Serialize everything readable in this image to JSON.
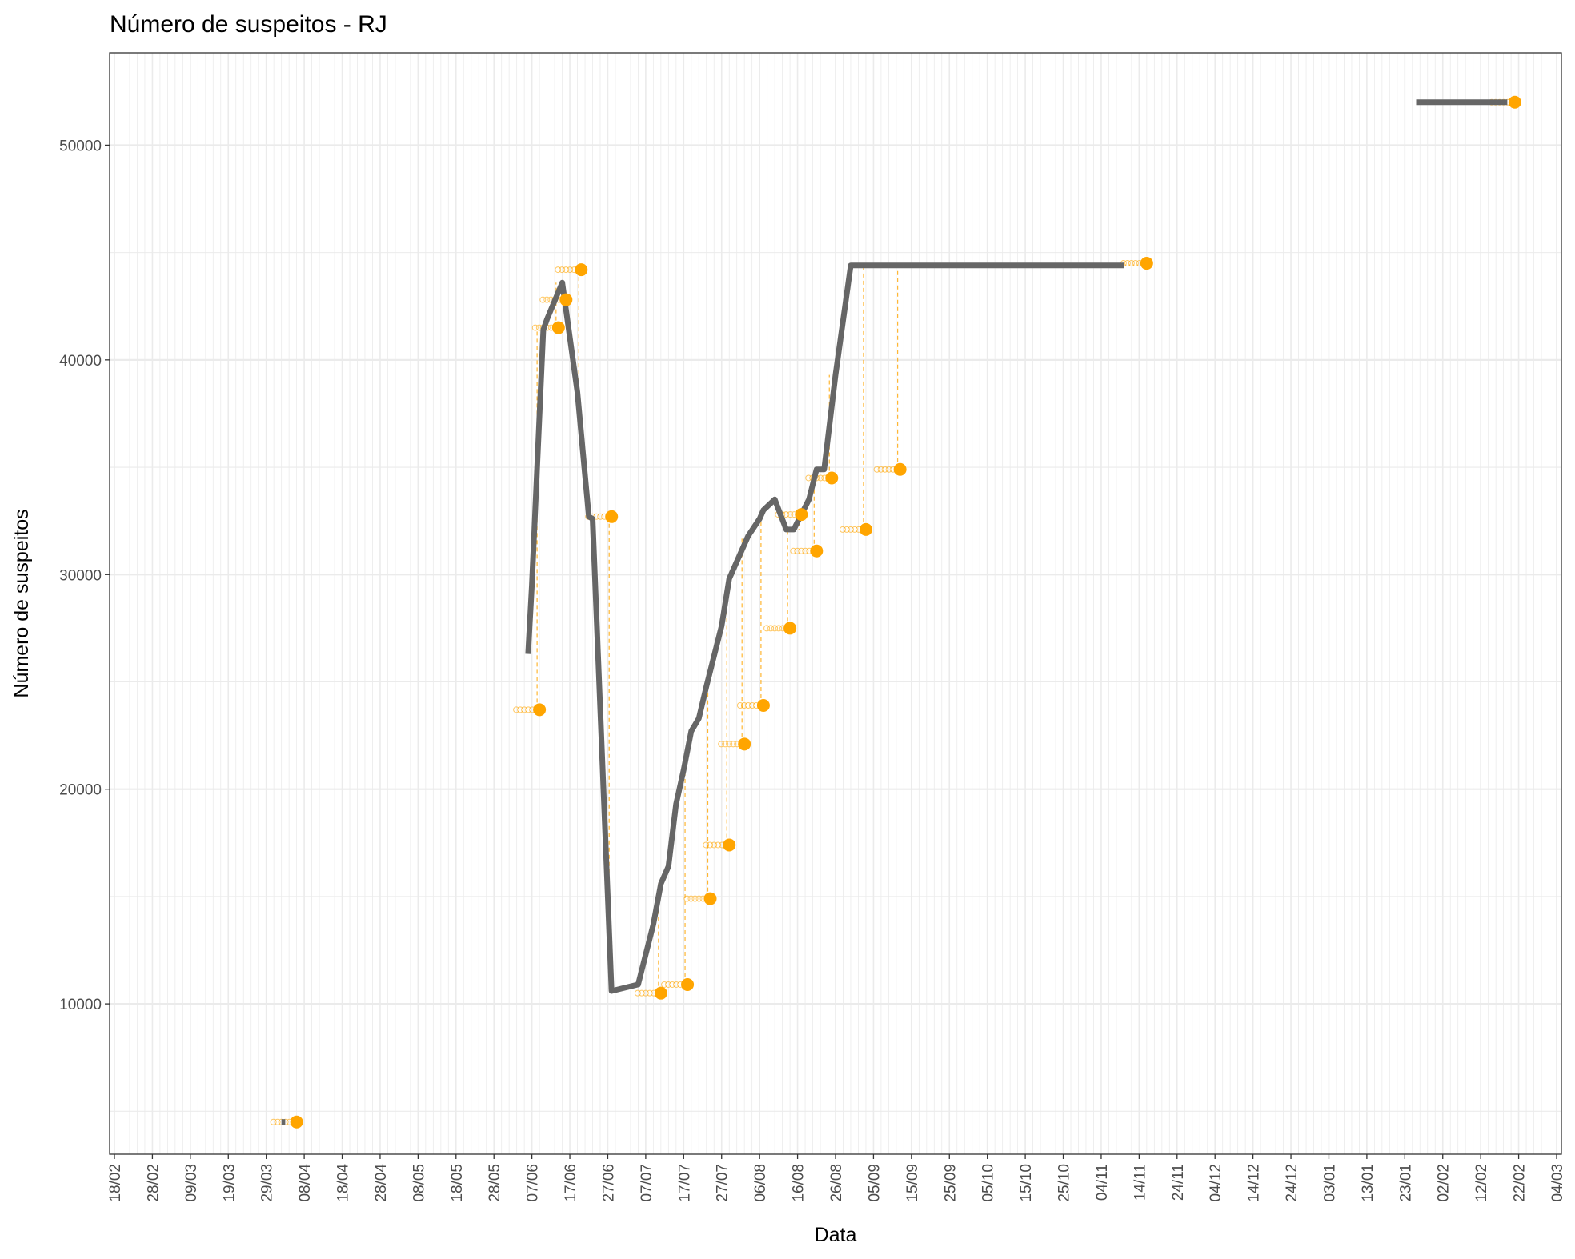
{
  "chart_data": {
    "type": "line",
    "title": "Número de suspeitos - RJ",
    "xlabel": "Data",
    "ylabel": "Número de suspeitos",
    "x_ticks": [
      "18/02",
      "28/02",
      "09/03",
      "19/03",
      "29/03",
      "08/04",
      "18/04",
      "28/04",
      "08/05",
      "18/05",
      "28/05",
      "07/06",
      "17/06",
      "27/06",
      "07/07",
      "17/07",
      "27/07",
      "06/08",
      "16/08",
      "26/08",
      "05/09",
      "15/09",
      "25/09",
      "05/10",
      "15/10",
      "25/10",
      "04/11",
      "14/11",
      "24/11",
      "04/12",
      "14/12",
      "24/12",
      "03/01",
      "13/01",
      "23/01",
      "02/02",
      "12/02",
      "22/02",
      "04/03"
    ],
    "y_ticks": [
      10000,
      20000,
      30000,
      40000,
      50000
    ],
    "ylim": [
      3000,
      54300
    ],
    "grid": true,
    "colors": {
      "line": "#666666",
      "points": "#FFA500",
      "grid": "#ebebeb",
      "panel_border": "#333333"
    },
    "series": [
      {
        "type": "line",
        "segments": [
          [
            [
              "02/04",
              4500
            ],
            [
              "03/04",
              4500
            ]
          ],
          [
            [
              "06/06",
              26300
            ],
            [
              "07/06",
              29500
            ],
            [
              "10/06",
              41400
            ],
            [
              "11/06",
              41900
            ],
            [
              "15/06",
              43600
            ],
            [
              "19/06",
              38500
            ],
            [
              "22/06",
              32700
            ],
            [
              "23/06",
              32600
            ],
            [
              "28/06",
              10600
            ],
            [
              "05/07",
              10900
            ],
            [
              "09/07",
              13700
            ],
            [
              "11/07",
              15600
            ],
            [
              "13/07",
              16400
            ],
            [
              "15/07",
              19300
            ],
            [
              "17/07",
              20900
            ],
            [
              "19/07",
              22700
            ],
            [
              "21/07",
              23300
            ],
            [
              "23/07",
              24800
            ],
            [
              "27/07",
              27600
            ],
            [
              "29/07",
              29800
            ],
            [
              "03/08",
              31800
            ],
            [
              "06/08",
              32600
            ],
            [
              "07/08",
              33000
            ],
            [
              "10/08",
              33500
            ],
            [
              "13/08",
              32100
            ],
            [
              "15/08",
              32100
            ],
            [
              "19/08",
              33500
            ],
            [
              "21/08",
              34900
            ],
            [
              "23/08",
              34900
            ],
            [
              "26/08",
              39300
            ],
            [
              "30/08",
              44400
            ],
            [
              "10/11",
              44400
            ]
          ],
          [
            [
              "26/01",
              52000
            ],
            [
              "19/02",
              52000
            ]
          ]
        ]
      },
      {
        "type": "scatter",
        "points": [
          {
            "x": "06/04",
            "y": 4500
          },
          {
            "x": "09/06",
            "y": 23700
          },
          {
            "x": "14/06",
            "y": 41500
          },
          {
            "x": "16/06",
            "y": 42800
          },
          {
            "x": "20/06",
            "y": 44200
          },
          {
            "x": "28/06",
            "y": 32700
          },
          {
            "x": "11/07",
            "y": 10500
          },
          {
            "x": "18/07",
            "y": 10900
          },
          {
            "x": "24/07",
            "y": 14900
          },
          {
            "x": "29/07",
            "y": 17400
          },
          {
            "x": "02/08",
            "y": 22100
          },
          {
            "x": "07/08",
            "y": 23900
          },
          {
            "x": "14/08",
            "y": 27500
          },
          {
            "x": "17/08",
            "y": 32800
          },
          {
            "x": "21/08",
            "y": 31100
          },
          {
            "x": "25/08",
            "y": 34500
          },
          {
            "x": "03/09",
            "y": 32100
          },
          {
            "x": "12/09",
            "y": 34900
          },
          {
            "x": "16/11",
            "y": 44500
          },
          {
            "x": "21/02",
            "y": 52000
          }
        ]
      }
    ]
  }
}
